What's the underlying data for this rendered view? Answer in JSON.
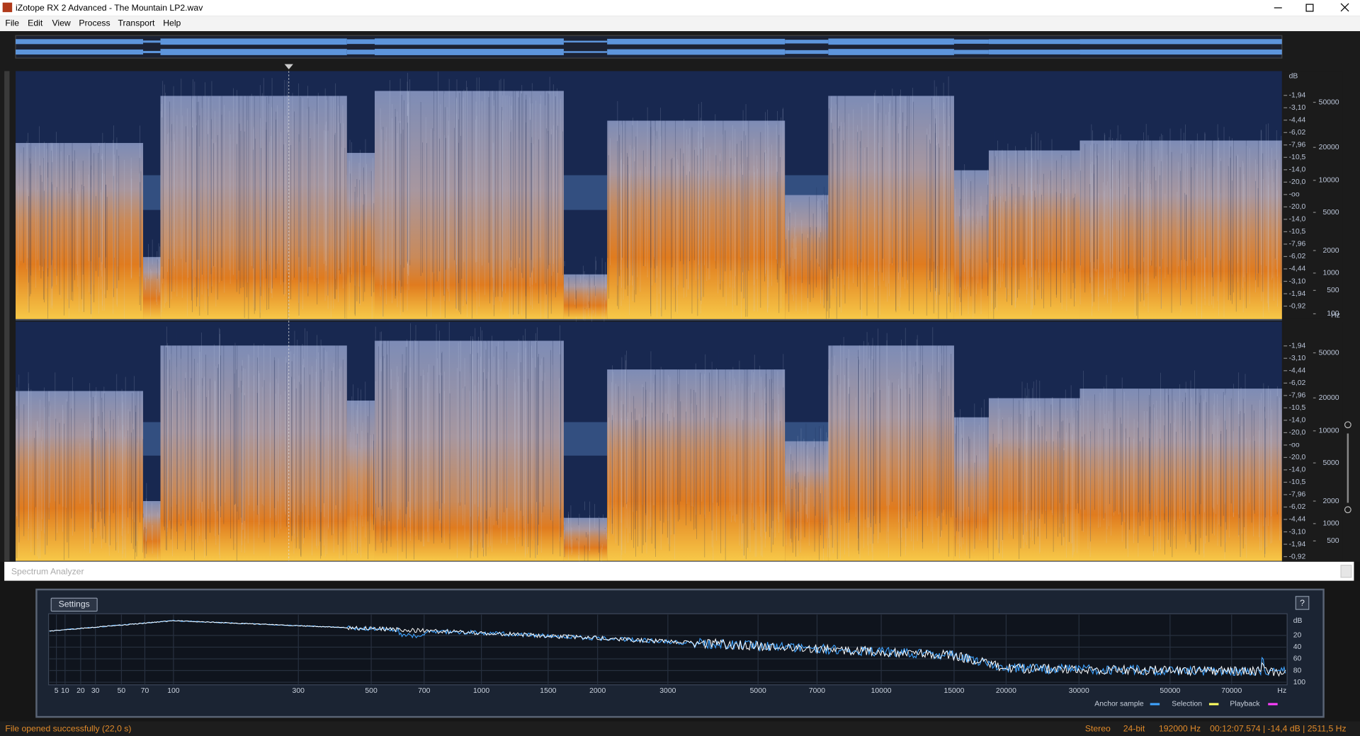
{
  "window": {
    "title": "iZotope RX 2 Advanced - The Mountain LP2.wav"
  },
  "menu": [
    "File",
    "Edit",
    "View",
    "Process",
    "Transport",
    "Help"
  ],
  "spectrogram": {
    "db_unit": "dB",
    "hz_unit": "Hz",
    "channels": [
      {
        "db_labels": [
          "-1,94",
          "-3,10",
          "-4,44",
          "-6,02",
          "-7,96",
          "-10,5",
          "-14,0",
          "-20,0",
          "-oo",
          "-20,0",
          "-14,0",
          "-10,5",
          "-7,96",
          "-6,02",
          "-4,44",
          "-3,10",
          "-1,94",
          "-0,92"
        ],
        "hz_labels": [
          "50000",
          "20000",
          "10000",
          "5000",
          "2000",
          "1000",
          "500",
          "100"
        ]
      },
      {
        "db_labels": [
          "-1,94",
          "-3,10",
          "-4,44",
          "-6,02",
          "-7,96",
          "-10,5",
          "-14,0",
          "-20,0",
          "-oo",
          "-20,0",
          "-14,0",
          "-10,5",
          "-7,96",
          "-6,02",
          "-4,44",
          "-3,10",
          "-1,94",
          "-0,92"
        ],
        "hz_labels": [
          "50000",
          "20000",
          "10000",
          "5000",
          "2000",
          "1000",
          "500"
        ]
      }
    ]
  },
  "spectrum_analyzer": {
    "title": "Spectrum Analyzer",
    "settings": "Settings",
    "help": "?",
    "x_labels": [
      "5",
      "10",
      "20",
      "30",
      "50",
      "70",
      "100",
      "300",
      "500",
      "700",
      "1000",
      "1500",
      "2000",
      "3000",
      "5000",
      "7000",
      "10000",
      "15000",
      "20000",
      "30000",
      "50000",
      "70000"
    ],
    "x_unit": "Hz",
    "y_unit": "dB",
    "y_labels": [
      "20",
      "40",
      "60",
      "80",
      "100"
    ],
    "legend": [
      "Anchor sample",
      "Selection",
      "Playback"
    ]
  },
  "status": {
    "message": "File opened successfully (22,0 s)",
    "channels": "Stereo",
    "bit_depth": "24-bit",
    "sample_rate": "192000 Hz",
    "position": "00:12:07.574 | -14,4 dB | 2511,5 Hz"
  }
}
